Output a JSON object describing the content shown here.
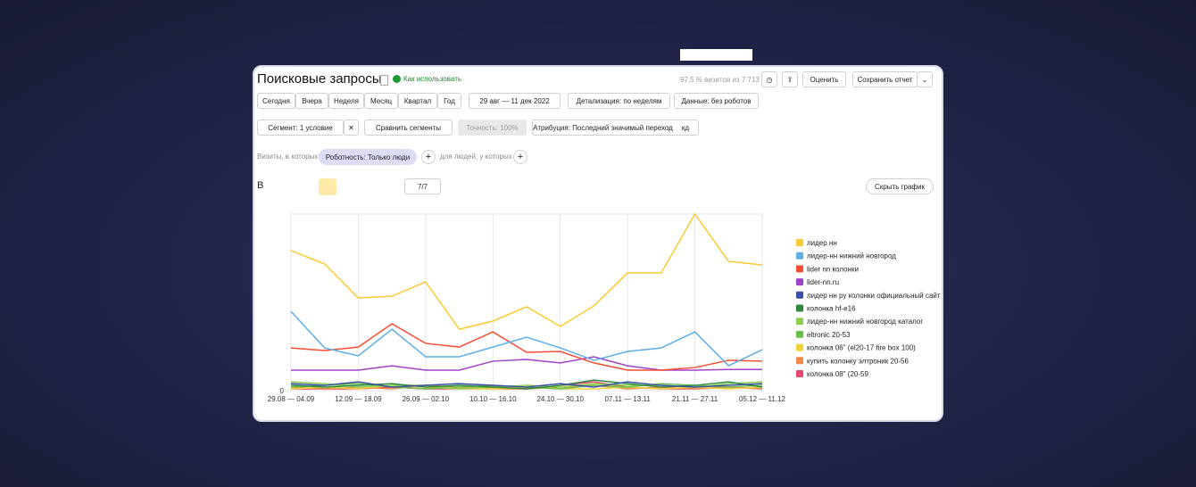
{
  "header": {
    "title": "Поисковые запросы",
    "help_link": "Как использовать",
    "sampling": "97,5 % визитов из 7 713",
    "rate_button": "Оценить",
    "save_button": "Сохранить отчет"
  },
  "toolbar": {
    "periods": [
      "Сегодня",
      "Вчера",
      "Неделя",
      "Месяц",
      "Квартал",
      "Год"
    ],
    "date_range": "29 авг — 11 дек 2022",
    "detail": "Детализация: по неделям",
    "data_filter": "Данные: без роботов"
  },
  "segments": {
    "segment": "Сегмент: 1 условие",
    "compare": "Сравнить сегменты",
    "accuracy": "Точность: 100%",
    "attribution": "Атрибуция: Последний значимый переход",
    "attribution_badge": "кд"
  },
  "filters": {
    "prefix": "Визиты, в которых",
    "chip": "Роботность: Только люди",
    "suffix": "для людей, у которых"
  },
  "chart_toolbar": {
    "label": "В",
    "count": "7/7",
    "hide_chart": "Скрыть график"
  },
  "chart_data": {
    "type": "line",
    "categories": [
      "29.08 — 04.09",
      null,
      "12.09 — 18.09",
      null,
      "26.09 — 02.10",
      null,
      "10.10 — 16.10",
      null,
      "24.10 — 30.10",
      null,
      "07.11 — 13.11",
      null,
      "21.11 — 27.11",
      null,
      "05.12 — 11.12"
    ],
    "ylim": [
      0,
      100
    ],
    "yticks": [
      0
    ],
    "series": [
      {
        "name": "лидер нн",
        "color": "#fcc934",
        "values": [
          79.3,
          71.7,
          52.5,
          53.5,
          61.6,
          34.8,
          39.4,
          47.5,
          36.4,
          48,
          66.7,
          66.7,
          100,
          73.2,
          71.2
        ]
      },
      {
        "name": "лидер-нн нижний новгород",
        "color": "#5eaee8",
        "values": [
          44.9,
          24.2,
          19.7,
          34.8,
          19.2,
          19.2,
          24.7,
          30.3,
          24.2,
          17.2,
          22.2,
          24.2,
          33.3,
          14.1,
          23.2
        ]
      },
      {
        "name": "lider nn колонки",
        "color": "#f44d34",
        "values": [
          24.2,
          22.7,
          24.7,
          37.9,
          26.8,
          24.7,
          33.3,
          21.7,
          22.2,
          15.7,
          11.6,
          11.6,
          13.1,
          17.2,
          16.7
        ]
      },
      {
        "name": "lider-nn.ru",
        "color": "#a142c8",
        "values": [
          11.6,
          11.6,
          11.6,
          14.1,
          11.6,
          11.6,
          16.7,
          17.7,
          15.7,
          19.2,
          14.1,
          11.6,
          11.6,
          12,
          12
        ]
      },
      {
        "name": "лидер нн ру колонки официальный сайт",
        "color": "#3a4ea8",
        "values": [
          4,
          3,
          5,
          2,
          3,
          4,
          3,
          2,
          4,
          2,
          5,
          3,
          2,
          3,
          4
        ]
      },
      {
        "name": "колонка hf-e16",
        "color": "#2e8b3e",
        "values": [
          3,
          2,
          3,
          4,
          2,
          3,
          2,
          1,
          3,
          6,
          4,
          2,
          3,
          5,
          2
        ]
      },
      {
        "name": "лидер-нн нижний новгород каталог",
        "color": "#8fd14f",
        "values": [
          5,
          4,
          2,
          3,
          3,
          1,
          2,
          3,
          2,
          4,
          3,
          3,
          2,
          4,
          5
        ]
      },
      {
        "name": "eltronic 20-53",
        "color": "#6dbf4a",
        "values": [
          2,
          3,
          4,
          2,
          1,
          2,
          3,
          2,
          1,
          3,
          2,
          4,
          3,
          2,
          3
        ]
      },
      {
        "name": "колонка 06\" (el20-17 fire box 100)",
        "color": "#f2d23c",
        "values": [
          1,
          2,
          1,
          3,
          2,
          1,
          1,
          2,
          1,
          1,
          2,
          1,
          2,
          1,
          2
        ]
      },
      {
        "name": "купить колонку элтроник 20-56",
        "color": "#f0884a",
        "values": [
          2,
          1,
          2,
          1,
          3,
          2,
          1,
          1,
          2,
          3,
          1,
          2,
          1,
          2,
          1
        ]
      },
      {
        "name": "колонка 08\" (20-59",
        "color": "#e8456b",
        "values": [
          1,
          1,
          1,
          2,
          1,
          1,
          2,
          1,
          3,
          5,
          2,
          1,
          1,
          2,
          1
        ]
      }
    ]
  }
}
